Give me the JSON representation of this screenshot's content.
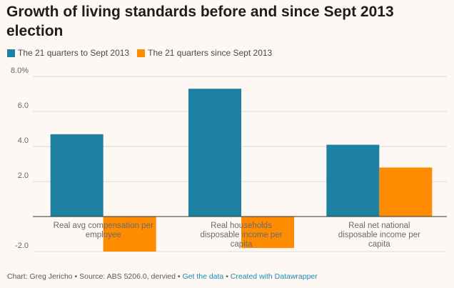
{
  "chart_data": {
    "type": "bar",
    "title": "Growth of living standards before and since Sept 2013 election",
    "categories": [
      [
        "Real avg compensation per",
        "employee"
      ],
      [
        "Real households",
        "disposable income per",
        "capita"
      ],
      [
        "Real net national",
        "disposable income per",
        "capita"
      ]
    ],
    "series": [
      {
        "name": "The 21 quarters to Sept 2013",
        "values": [
          4.7,
          7.3,
          4.1
        ],
        "color": "#1d81a2"
      },
      {
        "name": "The 21 quarters since Sept 2013",
        "values": [
          -2.0,
          -1.8,
          2.8
        ],
        "color": "#ff8c00"
      }
    ],
    "ylim": [
      -2.0,
      8.0
    ],
    "yticks": [
      {
        "value": 8.0,
        "label": "8.0%"
      },
      {
        "value": 6.0,
        "label": "6.0"
      },
      {
        "value": 4.0,
        "label": "4.0"
      },
      {
        "value": 2.0,
        "label": "2.0"
      },
      {
        "value": 0.0,
        "label": ""
      },
      {
        "value": -2.0,
        "label": "-2.0"
      }
    ],
    "xlabel": "",
    "ylabel": "",
    "grid": true,
    "legend": "top-left"
  },
  "footer": {
    "prefix": "Chart: Greg Jericho • Source: ABS 5206.0, dervied • ",
    "get_data": "Get the data",
    "separator": " • ",
    "created_with": "Created with Datawrapper"
  },
  "colors": {
    "background": "#fdf8f3",
    "grid": "#d9d9d9",
    "axis": "#333333",
    "link": "#1a8bb5"
  }
}
